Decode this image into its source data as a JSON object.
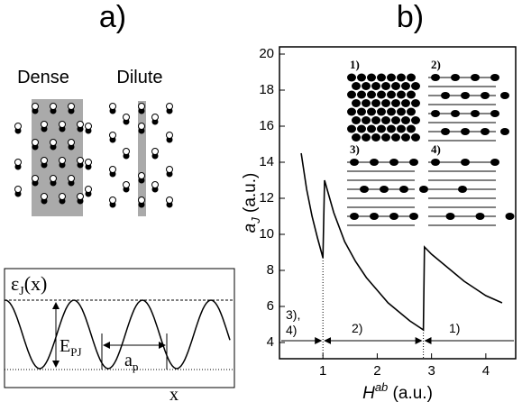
{
  "panel_a": {
    "label": "a)",
    "dense": "Dense",
    "dilute": "Dilute",
    "energy_label": {
      "main": "ε",
      "sub": "J",
      "tail": "(x)"
    },
    "barrier_label": {
      "main": "E",
      "sub": "PJ"
    },
    "period_label": {
      "main": "a",
      "sub": "p"
    },
    "x_label": "x"
  },
  "chart_data": {
    "type": "line",
    "panel_label": "b)",
    "xlabel": {
      "main": "H",
      "sup": "ab",
      "tail": " (a.u.)"
    },
    "ylabel": {
      "main": "a",
      "sub": "J",
      "tail": " (a.u.)"
    },
    "xlim": [
      0.2,
      4.55
    ],
    "ylim": [
      3.1,
      20.4
    ],
    "xticks": [
      1,
      2,
      3,
      4
    ],
    "yticks": [
      4,
      6,
      8,
      10,
      12,
      14,
      16,
      18,
      20
    ],
    "series": [
      {
        "color": "#000000",
        "x": [
          0.6,
          0.7,
          0.8,
          0.9,
          1.0,
          1.0,
          1.03,
          1.2,
          1.4,
          1.6,
          1.8,
          2.0,
          2.2,
          2.4,
          2.6,
          2.85,
          2.87,
          3.0,
          3.2,
          3.4,
          3.6,
          3.8,
          4.0,
          4.3
        ],
        "values": [
          14.5,
          12.5,
          11,
          9.8,
          8.7,
          8.7,
          13,
          11.2,
          9.6,
          8.5,
          7.6,
          6.9,
          6.2,
          5.7,
          5.2,
          4.7,
          9.3,
          8.9,
          8.4,
          7.9,
          7.4,
          7.0,
          6.6,
          6.2
        ]
      }
    ],
    "transitions": [
      1.0,
      2.85
    ],
    "annotations": [
      "3),",
      "4)",
      "2)",
      "1)"
    ],
    "insets": [
      "1)",
      "2)",
      "3)",
      "4)"
    ]
  }
}
